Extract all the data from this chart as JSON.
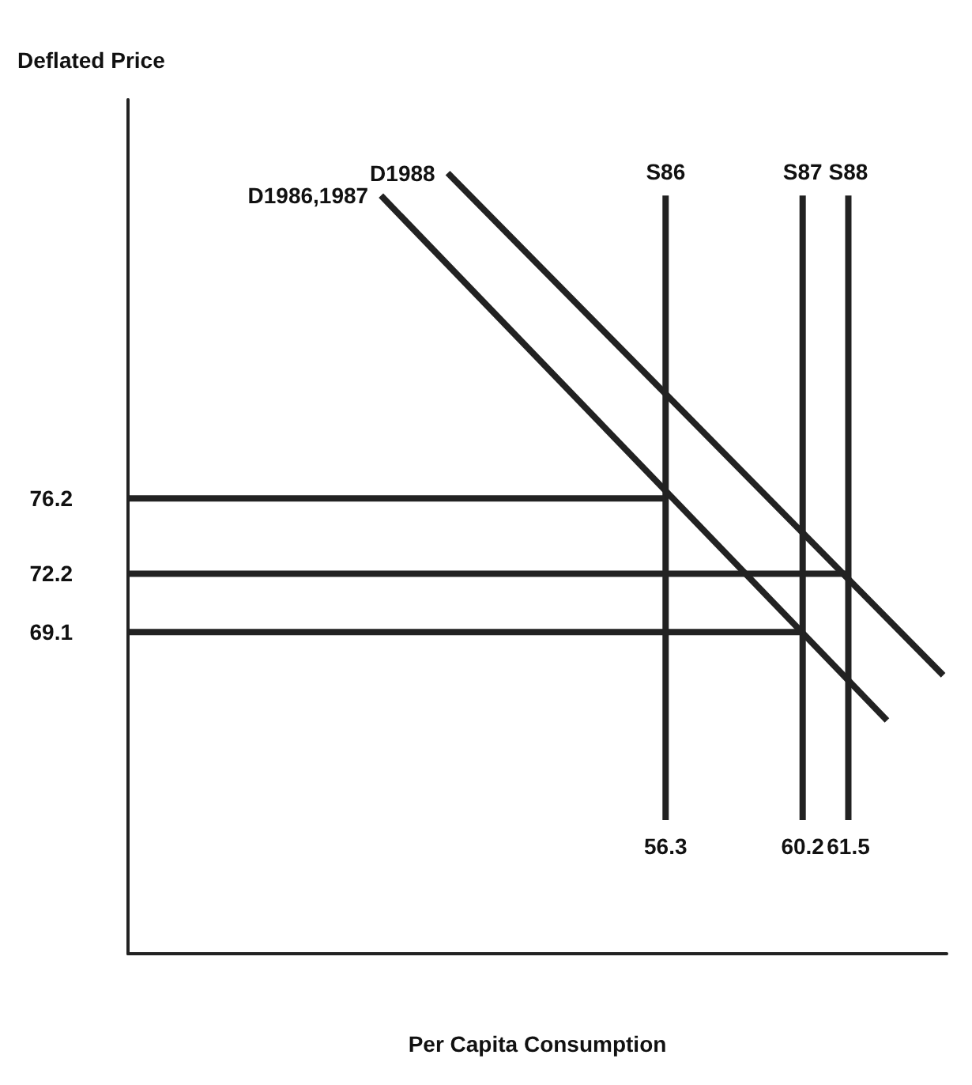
{
  "chart_data": {
    "type": "line",
    "xlabel": "Per Capita Consumption",
    "ylabel": "Deflated Price",
    "xlim": [
      41,
      64.3
    ],
    "ylim": [
      52,
      97.4
    ],
    "xticks": [
      56.3,
      60.2,
      61.5
    ],
    "yticks": [
      69.1,
      72.2,
      76.2
    ],
    "series": [
      {
        "name": "D1986,1987",
        "color": "#222222",
        "x": [
          48.2,
          62.6
        ],
        "values": [
          92.3,
          64.4
        ]
      },
      {
        "name": "D1988",
        "color": "#222222",
        "x": [
          50.1,
          64.2
        ],
        "values": [
          93.5,
          66.8
        ]
      },
      {
        "name": "S86",
        "color": "#222222",
        "x": [
          56.3,
          56.3
        ],
        "values": [
          59.1,
          92.3
        ]
      },
      {
        "name": "S87",
        "color": "#222222",
        "x": [
          60.2,
          60.2
        ],
        "values": [
          59.1,
          92.3
        ]
      },
      {
        "name": "S88",
        "color": "#222222",
        "x": [
          61.5,
          61.5
        ],
        "values": [
          59.1,
          92.3
        ]
      },
      {
        "color": "#222222",
        "x": [
          41,
          56.3
        ],
        "values": [
          76.2,
          76.2
        ]
      },
      {
        "color": "#222222",
        "x": [
          41,
          61.5
        ],
        "values": [
          72.2,
          72.2
        ]
      },
      {
        "color": "#222222",
        "x": [
          41,
          60.2
        ],
        "values": [
          69.1,
          69.1
        ]
      }
    ],
    "legend": false,
    "grid": false,
    "marker": "none",
    "line_style": "solid"
  }
}
